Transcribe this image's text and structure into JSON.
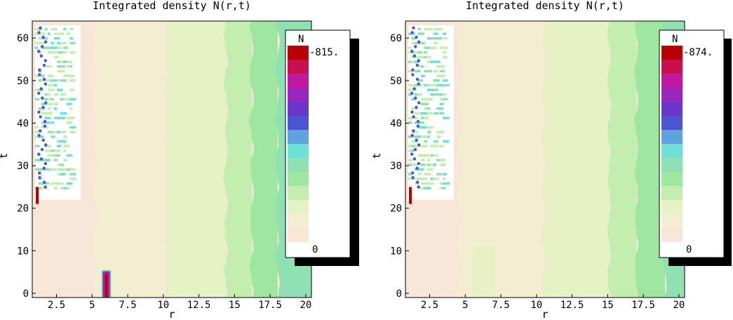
{
  "chart_data": [
    {
      "type": "heatmap",
      "title": "Integrated density N(r,t)",
      "xlabel": "r",
      "ylabel": "t",
      "xlim": [
        0.8,
        20.4
      ],
      "ylim": [
        -1,
        64
      ],
      "x_ticks": [
        "2.5",
        "5",
        "7.5",
        "10",
        "12.5",
        "15",
        "17.5",
        "20"
      ],
      "x_tick_values": [
        2.5,
        5,
        7.5,
        10,
        12.5,
        15,
        17.5,
        20
      ],
      "y_ticks": [
        "0",
        "10",
        "20",
        "30",
        "40",
        "50",
        "60"
      ],
      "y_tick_values": [
        0,
        10,
        20,
        30,
        40,
        50,
        60
      ],
      "legend": {
        "title": "N",
        "top_label": "-815.",
        "bottom_label": "0",
        "placement": "right"
      },
      "bands": [
        {
          "r_from": 0.8,
          "r_to": 5.2,
          "level": 1
        },
        {
          "r_from": 5.2,
          "r_to": 10.2,
          "level": 2
        },
        {
          "r_from": 10.2,
          "r_to": 14.4,
          "level": 3
        },
        {
          "r_from": 14.4,
          "r_to": 16.2,
          "level": 4
        },
        {
          "r_from": 16.2,
          "r_to": 18.0,
          "level": 5
        },
        {
          "r_from": 18.0,
          "r_to": 20.4,
          "level": 6
        }
      ],
      "features": [
        {
          "name": "source-peak",
          "r": 6.0,
          "t_from": -1,
          "t_to": 5.5,
          "level": 13
        },
        {
          "name": "edge-filaments",
          "r_from": 1.0,
          "r_to": 3.6,
          "t_from": 25,
          "t_to": 63,
          "level": 8
        }
      ]
    },
    {
      "type": "heatmap",
      "title": "Integrated density N(r,t)",
      "xlabel": "r",
      "ylabel": "t",
      "xlim": [
        0.8,
        20.4
      ],
      "ylim": [
        -1,
        64
      ],
      "x_ticks": [
        "2.5",
        "5",
        "7.5",
        "10",
        "12.5",
        "15",
        "17.5",
        "20"
      ],
      "x_tick_values": [
        2.5,
        5,
        7.5,
        10,
        12.5,
        15,
        17.5,
        20
      ],
      "y_ticks": [
        "0",
        "10",
        "20",
        "30",
        "40",
        "50",
        "60"
      ],
      "y_tick_values": [
        0,
        10,
        20,
        30,
        40,
        50,
        60
      ],
      "legend": {
        "title": "N",
        "top_label": "-874.",
        "bottom_label": "0",
        "placement": "right"
      },
      "bands": [
        {
          "r_from": 0.8,
          "r_to": 4.6,
          "level": 1
        },
        {
          "r_from": 4.6,
          "r_to": 10.5,
          "level": 2
        },
        {
          "r_from": 10.5,
          "r_to": 15.1,
          "level": 3
        },
        {
          "r_from": 15.1,
          "r_to": 17.0,
          "level": 4
        },
        {
          "r_from": 17.0,
          "r_to": 19.0,
          "level": 5
        },
        {
          "r_from": 19.0,
          "r_to": 20.4,
          "level": 6
        }
      ],
      "features": [
        {
          "name": "pedestal",
          "r_from": 5.5,
          "r_to": 7.1,
          "t_from": -1,
          "t_to": 11,
          "level": 3
        },
        {
          "name": "edge-filaments",
          "r_from": 1.0,
          "r_to": 3.6,
          "t_from": 25,
          "t_to": 63,
          "level": 8
        }
      ]
    }
  ],
  "palette": [
    "#ffffff",
    "#f8e6d8",
    "#f3edd2",
    "#e6f1c5",
    "#c4edb0",
    "#9fe6a0",
    "#8fe0b2",
    "#6ee0d6",
    "#5fa2dc",
    "#4a55d0",
    "#6a36c9",
    "#9a26c0",
    "#c0189e",
    "#c81050",
    "#b80000"
  ]
}
